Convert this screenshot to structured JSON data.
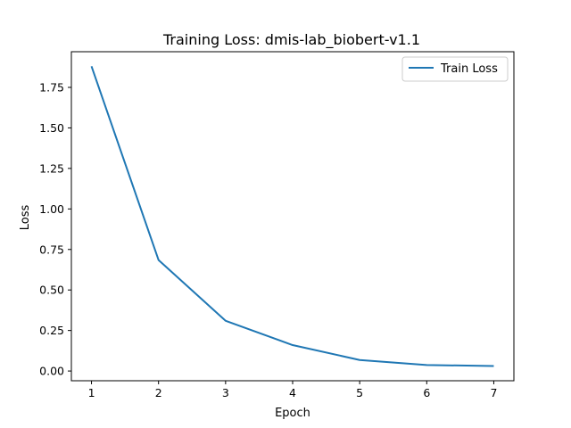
{
  "chart_data": {
    "type": "line",
    "title": "Training Loss: dmis-lab_biobert-v1.1",
    "xlabel": "Epoch",
    "ylabel": "Loss",
    "x": [
      1,
      2,
      3,
      4,
      5,
      6,
      7
    ],
    "series": [
      {
        "name": "Train Loss",
        "color": "#1f77b4",
        "values": [
          1.88,
          0.685,
          0.31,
          0.16,
          0.068,
          0.037,
          0.031
        ]
      }
    ],
    "xticks": [
      "1",
      "2",
      "3",
      "4",
      "5",
      "6",
      "7"
    ],
    "yticks": [
      "0.00",
      "0.25",
      "0.50",
      "0.75",
      "1.00",
      "1.25",
      "1.50",
      "1.75"
    ],
    "xlim": [
      0.7,
      7.3
    ],
    "ylim": [
      -0.06,
      1.97
    ],
    "grid": false,
    "legend_position": "top-right"
  }
}
